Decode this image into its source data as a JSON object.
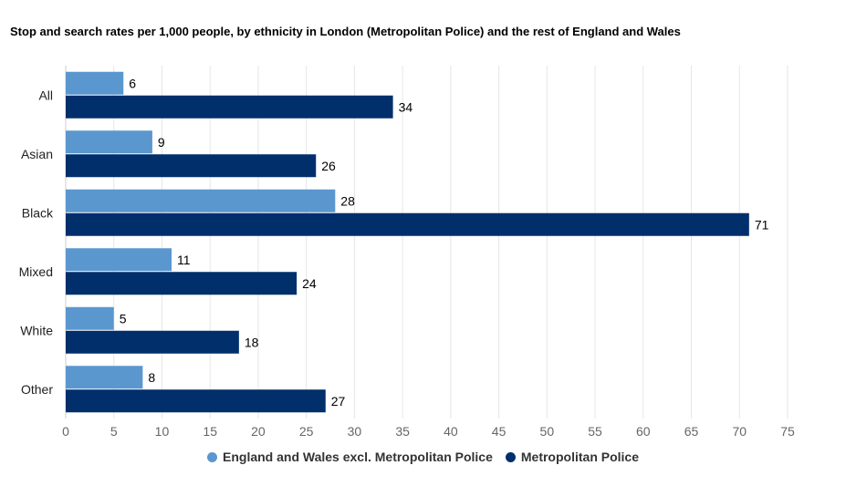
{
  "chart_data": {
    "type": "bar",
    "orientation": "horizontal",
    "title": "Stop and search rates per 1,000 people, by ethnicity in London (Metropolitan Police) and the rest of England and Wales",
    "categories": [
      "All",
      "Asian",
      "Black",
      "Mixed",
      "White",
      "Other"
    ],
    "series": [
      {
        "name": "England and Wales excl. Metropolitan Police",
        "color": "#5b97cf",
        "values": [
          6,
          9,
          28,
          11,
          5,
          8
        ]
      },
      {
        "name": "Metropolitan Police",
        "color": "#002f6c",
        "values": [
          34,
          26,
          71,
          24,
          18,
          27
        ]
      }
    ],
    "xlim": [
      0,
      75
    ],
    "xticks": [
      0,
      5,
      10,
      15,
      20,
      25,
      30,
      35,
      40,
      45,
      50,
      55,
      60,
      65,
      70,
      75
    ],
    "grid": true,
    "legend_position": "bottom-center"
  }
}
